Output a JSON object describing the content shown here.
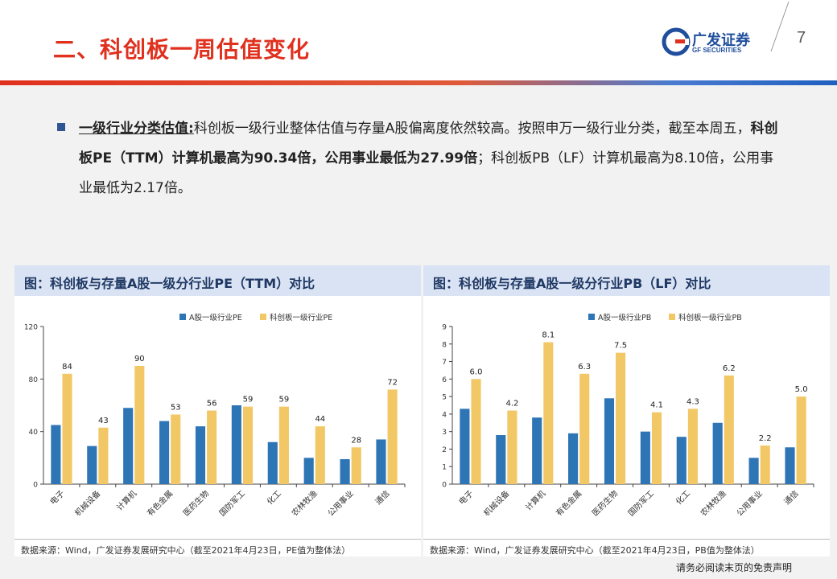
{
  "header": {
    "title": "二、科创板一周估值变化",
    "logo_name": "广发证券",
    "logo_en": "GF SECURITIES",
    "page_number": "7"
  },
  "body": {
    "heading": "一级行业分类估值:",
    "text1": "科创板一级行业整体估值与存量A股偏离度依然较高。按照申万一级行业分类，截至本周五，",
    "text2": "科创板PE（TTM）计算机最高为90.34倍，公用事业最低为27.99倍",
    "text3": "；科创板PB（LF）计算机最高为8.10倍，公用事业最低为2.17倍。"
  },
  "colors": {
    "a_share": "#2e75b6",
    "star": "#f2c867"
  },
  "footer": {
    "disclaimer": "请务必阅读末页的免责声明"
  },
  "chart_data": [
    {
      "type": "bar",
      "title": "图：科创板与存量A股一级分行业PE（TTM）对比",
      "source": "数据来源：Wind，广发证券发展研究中心（截至2021年4月23日，PE值为整体法）",
      "categories": [
        "电子",
        "机械设备",
        "计算机",
        "有色金属",
        "医药生物",
        "国防军工",
        "化工",
        "农林牧渔",
        "公用事业",
        "通信"
      ],
      "series": [
        {
          "name": "A股一级行业PE",
          "values": [
            45,
            29,
            58,
            48,
            44,
            60,
            32,
            20,
            19,
            34
          ],
          "labels": []
        },
        {
          "name": "科创板一级行业PE",
          "values": [
            84,
            43,
            90,
            53,
            56,
            59,
            59,
            44,
            28,
            72
          ],
          "labels": [
            "84",
            "43",
            "90",
            "53",
            "56",
            "59",
            "59",
            "44",
            "28",
            "72"
          ]
        }
      ],
      "ylim": [
        0,
        120
      ],
      "yticks": [
        0,
        40,
        80,
        120
      ],
      "legend": "top"
    },
    {
      "type": "bar",
      "title": "图：科创板与存量A股一级分行业PB（LF）对比",
      "source": "数据来源：Wind，广发证券发展研究中心（截至2021年4月23日，PB值为整体法）",
      "categories": [
        "电子",
        "机械设备",
        "计算机",
        "有色金属",
        "医药生物",
        "国防军工",
        "化工",
        "农林牧渔",
        "公用事业",
        "通信"
      ],
      "series": [
        {
          "name": "A股一级行业PB",
          "values": [
            4.3,
            2.8,
            3.8,
            2.9,
            4.9,
            3.0,
            2.7,
            3.5,
            1.5,
            2.1
          ],
          "labels": []
        },
        {
          "name": "科创板一级行业PB",
          "values": [
            6.0,
            4.2,
            8.1,
            6.3,
            7.5,
            4.1,
            4.3,
            6.2,
            2.2,
            5.0
          ],
          "labels": [
            "6.0",
            "4.2",
            "8.1",
            "6.3",
            "7.5",
            "4.1",
            "4.3",
            "6.2",
            "2.2",
            "5.0"
          ]
        }
      ],
      "ylim": [
        0,
        9
      ],
      "yticks": [
        0,
        1,
        2,
        3,
        4,
        5,
        6,
        7,
        8,
        9
      ],
      "legend": "top"
    }
  ]
}
